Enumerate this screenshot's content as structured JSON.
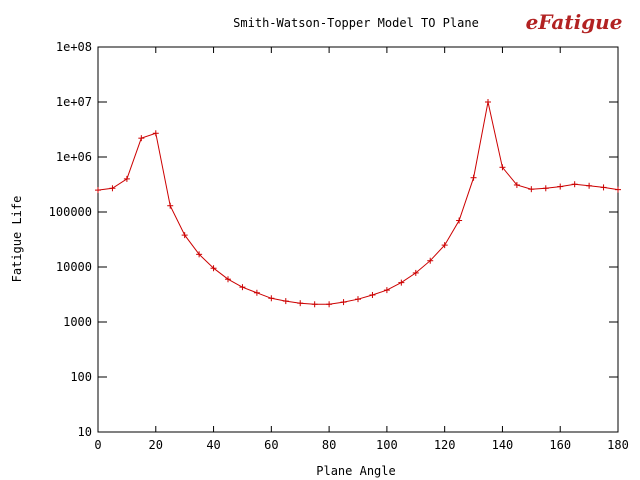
{
  "chart_data": {
    "type": "line",
    "title": "Smith-Watson-Topper Model TO Plane",
    "xlabel": "Plane Angle",
    "ylabel": "Fatigue Life",
    "xlim": [
      0,
      180
    ],
    "ylim": [
      10,
      100000000
    ],
    "yscale": "log",
    "grid": false,
    "x_ticks": [
      "0",
      "20",
      "40",
      "60",
      "80",
      "100",
      "120",
      "140",
      "160",
      "180"
    ],
    "y_ticks": [
      "10",
      "100",
      "1000",
      "10000",
      "100000",
      "1e+06",
      "1e+07",
      "1e+08"
    ],
    "series": [
      {
        "color": "#cc0000",
        "marker": "plus",
        "x": [
          0,
          5,
          10,
          15,
          20,
          25,
          30,
          35,
          40,
          45,
          50,
          55,
          60,
          65,
          70,
          75,
          80,
          85,
          90,
          95,
          100,
          105,
          110,
          115,
          120,
          125,
          130,
          135,
          140,
          145,
          150,
          155,
          160,
          165,
          170,
          175,
          180
        ],
        "y": [
          250000,
          270000,
          400000,
          2200000,
          2700000,
          130000,
          38000,
          17000,
          9500,
          6000,
          4300,
          3400,
          2700,
          2400,
          2200,
          2100,
          2100,
          2300,
          2600,
          3100,
          3800,
          5200,
          7800,
          13000,
          25000,
          70000,
          420000,
          10000000,
          650000,
          310000,
          260000,
          270000,
          290000,
          320000,
          300000,
          280000,
          255000
        ]
      }
    ]
  },
  "logo": {
    "text": "eFatigue",
    "color": "#b22222"
  }
}
